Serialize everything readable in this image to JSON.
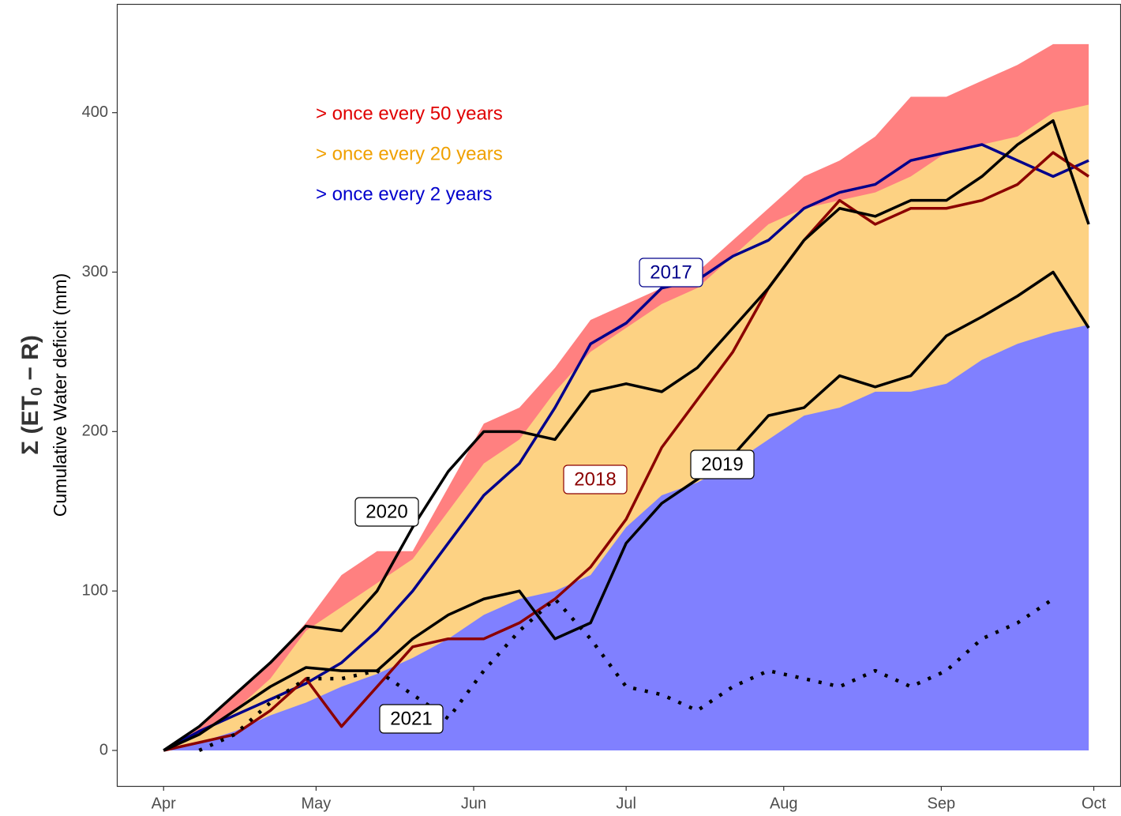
{
  "chart_data": {
    "type": "line",
    "y_title": {
      "main": "Σ (ET",
      "sub": "0",
      "end": " − R)"
    },
    "ylabel": "Cumulative Water deficit (mm)",
    "x": [
      0,
      7,
      14,
      21,
      28,
      35,
      42,
      49,
      56,
      63,
      70,
      77,
      84,
      91,
      98,
      105,
      112,
      119,
      126,
      133,
      140,
      147,
      154,
      161,
      168,
      175,
      182
    ],
    "xlim": [
      -9.2,
      188.2
    ],
    "xticks": [
      {
        "value": 0,
        "label": "Apr"
      },
      {
        "value": 30,
        "label": "May"
      },
      {
        "value": 61,
        "label": "Jun"
      },
      {
        "value": 91,
        "label": "Jul"
      },
      {
        "value": 122,
        "label": "Aug"
      },
      {
        "value": 153,
        "label": "Sep"
      },
      {
        "value": 183,
        "label": "Oct"
      }
    ],
    "ylim": [
      -22.3,
      468.2
    ],
    "yticks": [
      0,
      100,
      200,
      300,
      400
    ],
    "areas": [
      {
        "name": "> once every 50 years",
        "color": "#ff8080",
        "label_color": "#e00000",
        "values": [
          0,
          15,
          35,
          55,
          80,
          110,
          125,
          125,
          165,
          205,
          215,
          240,
          270,
          280,
          290,
          300,
          320,
          340,
          360,
          370,
          385,
          410,
          410,
          420,
          430,
          443,
          443
        ]
      },
      {
        "name": "> once every 20 years",
        "color": "#fdd283",
        "label_color": "#f0a000",
        "values": [
          0,
          10,
          25,
          45,
          75,
          90,
          105,
          120,
          150,
          180,
          195,
          225,
          250,
          265,
          280,
          290,
          310,
          330,
          340,
          345,
          350,
          360,
          375,
          380,
          385,
          400,
          405
        ]
      },
      {
        "name": "> once every 2 years",
        "color": "#8080ff",
        "label_color": "#0000cc",
        "values": [
          0,
          5,
          12,
          22,
          30,
          40,
          48,
          58,
          70,
          85,
          95,
          100,
          110,
          140,
          160,
          168,
          180,
          195,
          210,
          215,
          225,
          225,
          230,
          245,
          255,
          262,
          267
        ]
      }
    ],
    "series": [
      {
        "name": "2017",
        "color": "#00008b",
        "linestyle": "solid",
        "values": [
          0,
          12,
          22,
          32,
          42,
          55,
          75,
          100,
          130,
          160,
          180,
          215,
          255,
          268,
          290,
          295,
          310,
          320,
          340,
          350,
          355,
          370,
          375,
          380,
          370,
          360,
          370
        ]
      },
      {
        "name": "2018",
        "color": "#8b0000",
        "linestyle": "solid",
        "values": [
          0,
          5,
          10,
          25,
          45,
          15,
          40,
          65,
          70,
          70,
          80,
          95,
          115,
          145,
          190,
          220,
          250,
          290,
          320,
          345,
          330,
          340,
          340,
          345,
          355,
          375,
          360
        ]
      },
      {
        "name": "2019",
        "color": "#000000",
        "linestyle": "solid",
        "values": [
          0,
          10,
          25,
          40,
          52,
          50,
          50,
          70,
          85,
          95,
          100,
          70,
          80,
          130,
          155,
          170,
          185,
          210,
          215,
          235,
          228,
          235,
          260,
          272,
          285,
          300,
          265
        ]
      },
      {
        "name": "2020",
        "color": "#000000",
        "linestyle": "solid",
        "values": [
          0,
          15,
          35,
          55,
          78,
          75,
          100,
          140,
          175,
          200,
          200,
          195,
          225,
          230,
          225,
          240,
          265,
          290,
          320,
          340,
          335,
          345,
          345,
          360,
          380,
          395,
          330
        ]
      },
      {
        "name": "2021",
        "color": "#000000",
        "linestyle": "dotted",
        "values": [
          null,
          0,
          10,
          30,
          45,
          45,
          50,
          35,
          20,
          50,
          75,
          95,
          70,
          40,
          35,
          25,
          40,
          50,
          45,
          40,
          50,
          40,
          50,
          70,
          80,
          95,
          null
        ]
      }
    ]
  }
}
